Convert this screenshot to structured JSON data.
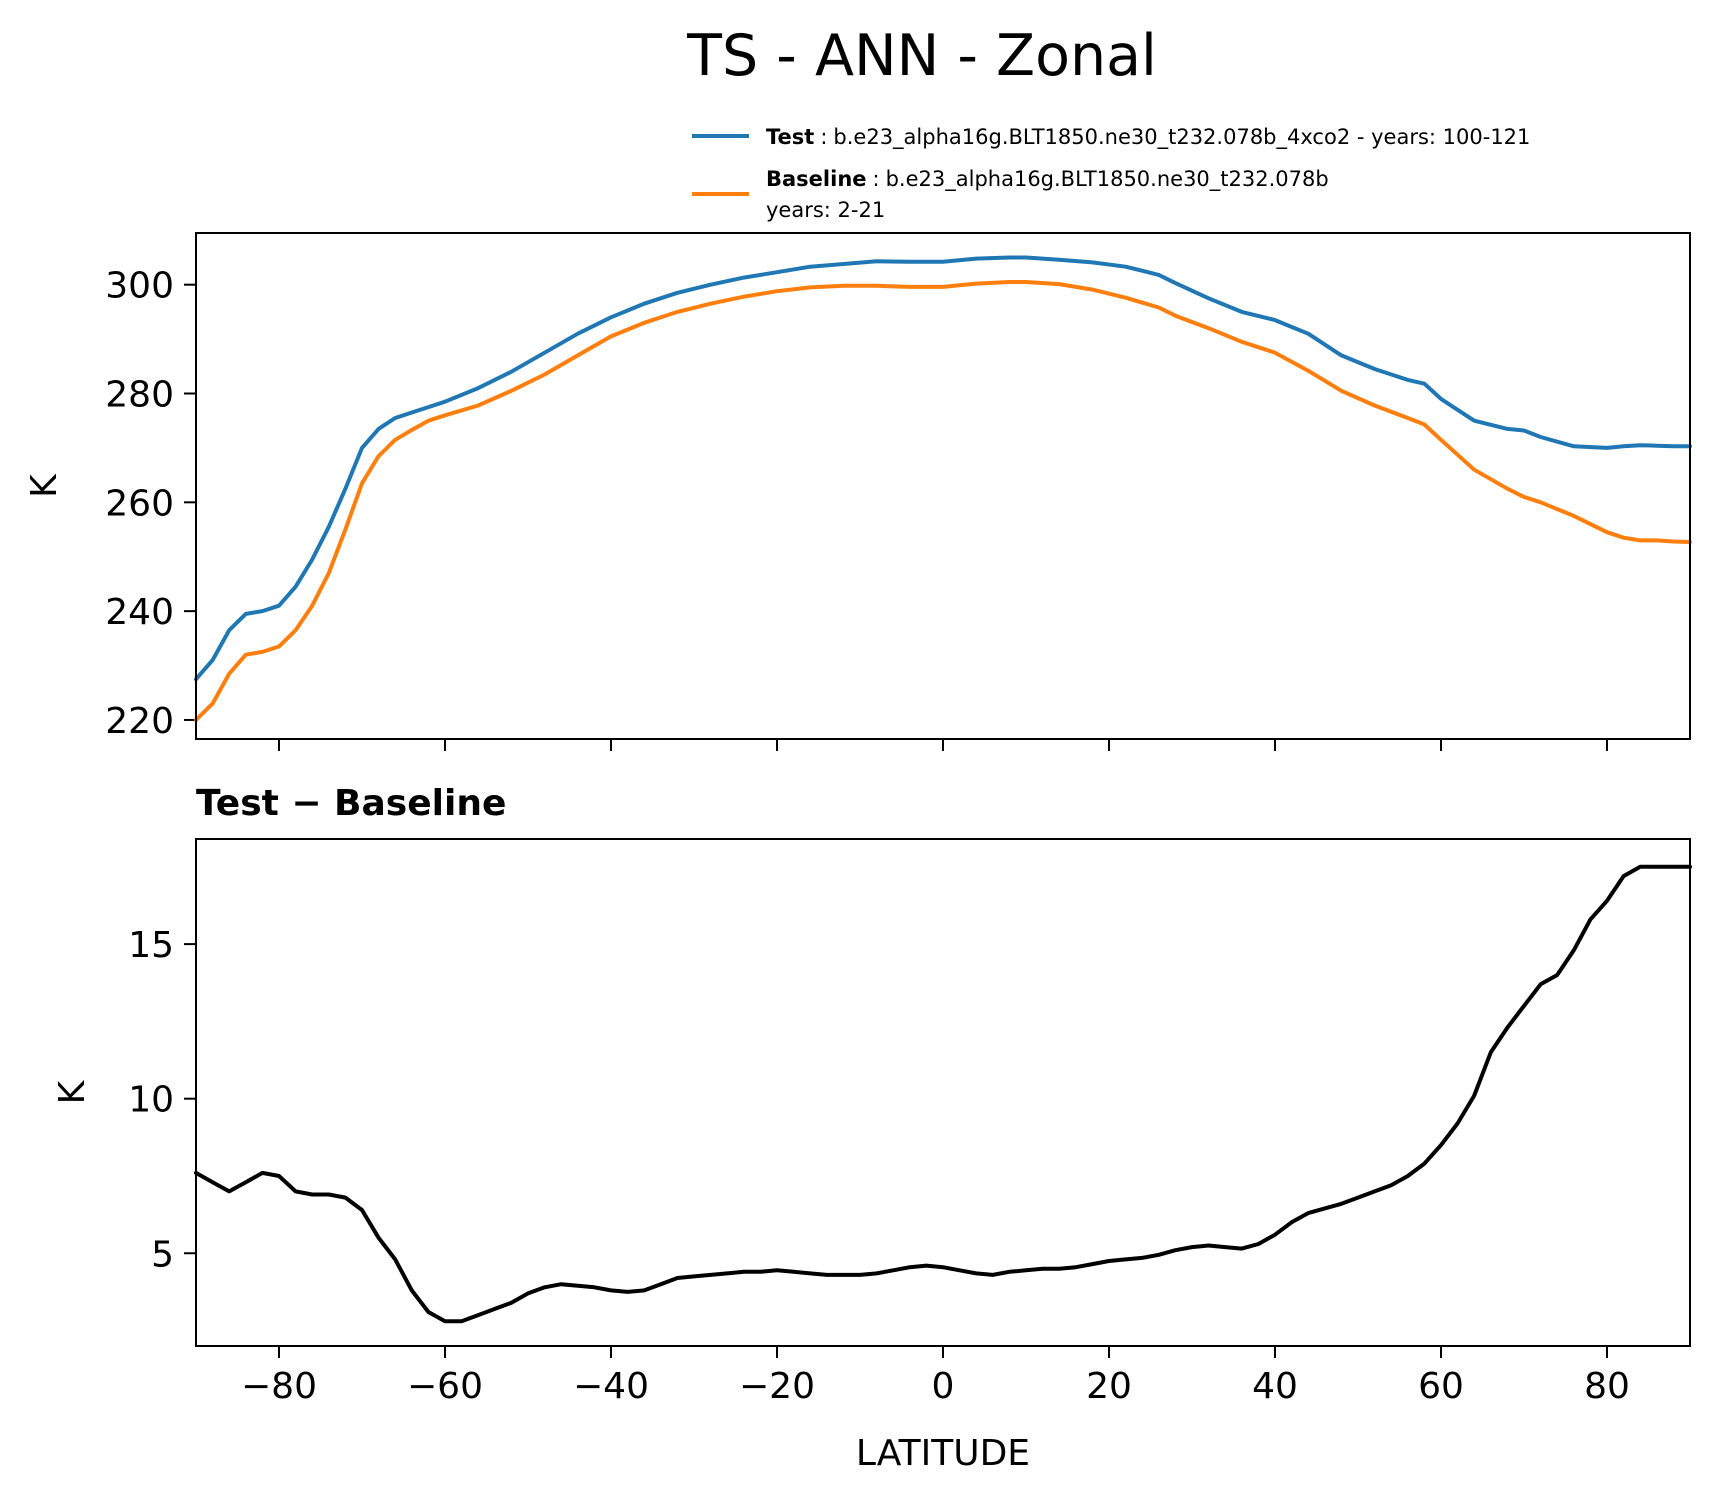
{
  "chart_data": [
    {
      "type": "line",
      "title": "TS - ANN - Zonal",
      "ylabel": "K",
      "xlabel": "",
      "xlim": [
        -90,
        90
      ],
      "ylim": [
        216.5,
        309.5
      ],
      "xticks": [
        -80,
        -60,
        -40,
        -20,
        0,
        20,
        40,
        60,
        80
      ],
      "yticks": [
        220,
        240,
        260,
        280,
        300
      ],
      "yticklabels": [
        "220",
        "240",
        "260",
        "280",
        "300"
      ],
      "legend": {
        "position": "above-top-right",
        "entries": [
          {
            "name": "Test",
            "color": "#1f77b4",
            "separator": ":",
            "text": "b.e23_alpha16g.BLT1850.ne30_t232.078b_4xco2 - years: 100-121",
            "text2": ""
          },
          {
            "name": "Baseline",
            "color": "#ff7f0e",
            "separator": ":",
            "text": "b.e23_alpha16g.BLT1850.ne30_t232.078b",
            "text2": "years: 2-21"
          }
        ]
      },
      "series": [
        {
          "name": "Test",
          "color": "#1f77b4",
          "x": [
            -90,
            -88,
            -86,
            -84,
            -82,
            -80,
            -78,
            -76,
            -74,
            -72,
            -70,
            -68,
            -66,
            -64,
            -62,
            -60,
            -56,
            -52,
            -48,
            -44,
            -40,
            -36,
            -32,
            -28,
            -24,
            -20,
            -16,
            -12,
            -8,
            -4,
            0,
            4,
            8,
            10,
            14,
            18,
            22,
            26,
            28,
            32,
            36,
            40,
            44,
            48,
            52,
            56,
            58,
            60,
            64,
            68,
            70,
            72,
            76,
            80,
            82,
            84,
            86,
            88,
            90
          ],
          "values": [
            227.5,
            231,
            236.5,
            239.5,
            240,
            241,
            244.5,
            249.5,
            255.5,
            262.5,
            270,
            273.5,
            275.5,
            276.5,
            277.5,
            278.5,
            281,
            284,
            287.5,
            291,
            294,
            296.5,
            298.5,
            300,
            301.3,
            302.3,
            303.3,
            303.8,
            304.3,
            304.2,
            304.2,
            304.8,
            305,
            305,
            304.6,
            304.1,
            303.3,
            301.8,
            300.3,
            297.5,
            295,
            293.5,
            291,
            287,
            284.5,
            282.5,
            281.8,
            279,
            275,
            273.5,
            273.2,
            272,
            270.3,
            270,
            270.3,
            270.5,
            270.4,
            270.3,
            270.3
          ]
        },
        {
          "name": "Baseline",
          "color": "#ff7f0e",
          "x": [
            -90,
            -88,
            -86,
            -84,
            -82,
            -80,
            -78,
            -76,
            -74,
            -72,
            -70,
            -68,
            -66,
            -64,
            -62,
            -60,
            -56,
            -52,
            -48,
            -44,
            -40,
            -36,
            -32,
            -28,
            -24,
            -20,
            -16,
            -12,
            -8,
            -4,
            0,
            4,
            8,
            10,
            14,
            18,
            22,
            26,
            28,
            32,
            36,
            40,
            44,
            48,
            52,
            56,
            58,
            60,
            64,
            68,
            70,
            72,
            76,
            80,
            82,
            84,
            86,
            88,
            90
          ],
          "values": [
            220,
            223,
            228.5,
            232,
            232.5,
            233.5,
            236.5,
            241,
            247,
            255,
            263.5,
            268.5,
            271.5,
            273.3,
            275,
            276,
            277.8,
            280.5,
            283.5,
            287,
            290.5,
            293,
            295,
            296.5,
            297.8,
            298.8,
            299.5,
            299.8,
            299.8,
            299.6,
            299.6,
            300.2,
            300.5,
            300.5,
            300.1,
            299.1,
            297.6,
            295.8,
            294.3,
            292,
            289.5,
            287.5,
            284.2,
            280.5,
            277.8,
            275.5,
            274.3,
            271.5,
            266,
            262.5,
            261,
            260,
            257.5,
            254.5,
            253.5,
            253,
            253,
            252.8,
            252.7
          ]
        }
      ]
    },
    {
      "type": "line",
      "title": "Test − Baseline",
      "ylabel": "K",
      "xlabel": "LATITUDE",
      "xlim": [
        -90,
        90
      ],
      "ylim": [
        2,
        18.4
      ],
      "xticks": [
        -80,
        -60,
        -40,
        -20,
        0,
        20,
        40,
        60,
        80
      ],
      "xticklabels": [
        "−80",
        "−60",
        "−40",
        "−20",
        "0",
        "20",
        "40",
        "60",
        "80"
      ],
      "yticks": [
        5,
        10,
        15
      ],
      "yticklabels": [
        "5",
        "10",
        "15"
      ],
      "series": [
        {
          "name": "Test − Baseline",
          "color": "#000000",
          "x": [
            -90,
            -88,
            -86,
            -84,
            -82,
            -80,
            -78,
            -76,
            -74,
            -72,
            -70,
            -68,
            -66,
            -64,
            -62,
            -60,
            -58,
            -56,
            -54,
            -52,
            -50,
            -48,
            -46,
            -44,
            -42,
            -40,
            -38,
            -36,
            -34,
            -32,
            -30,
            -28,
            -26,
            -24,
            -22,
            -20,
            -18,
            -16,
            -14,
            -12,
            -10,
            -8,
            -6,
            -4,
            -2,
            0,
            2,
            4,
            6,
            8,
            10,
            12,
            14,
            16,
            18,
            20,
            22,
            24,
            26,
            28,
            30,
            32,
            34,
            36,
            38,
            40,
            42,
            44,
            46,
            48,
            50,
            52,
            54,
            56,
            58,
            60,
            62,
            64,
            66,
            68,
            70,
            72,
            74,
            76,
            78,
            80,
            82,
            84,
            86,
            88,
            90
          ],
          "values": [
            7.6,
            7.3,
            7.0,
            7.3,
            7.6,
            7.5,
            7.0,
            6.9,
            6.9,
            6.8,
            6.4,
            5.5,
            4.8,
            3.8,
            3.1,
            2.8,
            2.8,
            3.0,
            3.2,
            3.4,
            3.7,
            3.9,
            4.0,
            3.95,
            3.9,
            3.8,
            3.75,
            3.8,
            4.0,
            4.2,
            4.25,
            4.3,
            4.35,
            4.4,
            4.4,
            4.45,
            4.4,
            4.35,
            4.3,
            4.3,
            4.3,
            4.35,
            4.45,
            4.55,
            4.6,
            4.55,
            4.45,
            4.35,
            4.3,
            4.4,
            4.45,
            4.5,
            4.5,
            4.55,
            4.65,
            4.75,
            4.8,
            4.85,
            4.95,
            5.1,
            5.2,
            5.25,
            5.2,
            5.15,
            5.3,
            5.6,
            6.0,
            6.3,
            6.45,
            6.6,
            6.8,
            7.0,
            7.2,
            7.5,
            7.9,
            8.5,
            9.2,
            10.1,
            11.5,
            12.3,
            13.0,
            13.7,
            14.0,
            14.8,
            15.8,
            16.4,
            17.2,
            17.5,
            17.5,
            17.5,
            17.5
          ]
        }
      ]
    }
  ]
}
